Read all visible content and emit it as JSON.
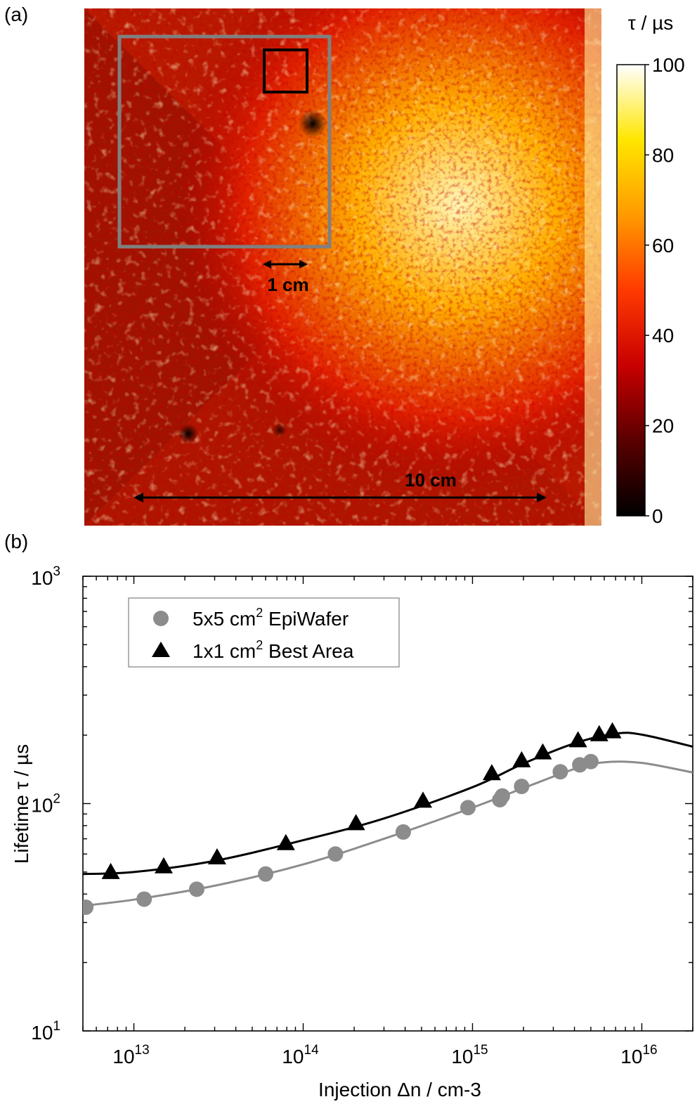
{
  "panel_a": {
    "label": "(a)",
    "colorbar_title": "τ / µs",
    "colorbar_ticks": [
      "100",
      "80",
      "60",
      "40",
      "20",
      "0"
    ],
    "colorbar_range": [
      0,
      100
    ],
    "colormap": [
      "#000000",
      "#5a0000",
      "#c80000",
      "#ff3a00",
      "#ff9a00",
      "#ffe600",
      "#ffffff"
    ],
    "scale_small": "1 cm",
    "scale_large": "10 cm",
    "gray_box_color": "#808080",
    "black_box_color": "#000000"
  },
  "chart_data": {
    "type": "scatter",
    "label": "(b)",
    "xlabel": "Injection Δn / cm-3",
    "ylabel": "Lifetime τ / µs",
    "xscale": "log",
    "yscale": "log",
    "xlim": [
      5000000000000.0,
      2e+16
    ],
    "ylim": [
      10,
      1000
    ],
    "x_ticks": [
      {
        "value": 10000000000000.0,
        "base": "10",
        "exp": "13"
      },
      {
        "value": 100000000000000.0,
        "base": "10",
        "exp": "14"
      },
      {
        "value": 1000000000000000.0,
        "base": "10",
        "exp": "15"
      },
      {
        "value": 1e+16,
        "base": "10",
        "exp": "16"
      }
    ],
    "y_ticks": [
      {
        "value": 10,
        "base": "10",
        "exp": "1"
      },
      {
        "value": 100,
        "base": "10",
        "exp": "2"
      },
      {
        "value": 1000,
        "base": "10",
        "exp": "3"
      }
    ],
    "legend_position": "top-left",
    "series": [
      {
        "name": "5x5 cm2 EpiWafer",
        "legend_main": "5x5 cm",
        "legend_sup": "2",
        "legend_tail": " EpiWafer",
        "marker": "circle",
        "color": "#8c8c8c",
        "points": [
          [
            5200000000000.0,
            35
          ],
          [
            11500000000000.0,
            38
          ],
          [
            23500000000000.0,
            42
          ],
          [
            60000000000000.0,
            49
          ],
          [
            155000000000000.0,
            60
          ],
          [
            390000000000000.0,
            75
          ],
          [
            940000000000000.0,
            96
          ],
          [
            1450000000000000.0,
            104
          ],
          [
            1500000000000000.0,
            108
          ],
          [
            1950000000000000.0,
            119
          ],
          [
            3300000000000000.0,
            138
          ],
          [
            4300000000000000.0,
            148
          ],
          [
            5000000000000000.0,
            153
          ]
        ],
        "fit": [
          [
            5000000000000.0,
            35.5
          ],
          [
            10000000000000.0,
            37.8
          ],
          [
            30000000000000.0,
            43.5
          ],
          [
            100000000000000.0,
            54
          ],
          [
            300000000000000.0,
            70
          ],
          [
            1000000000000000.0,
            96
          ],
          [
            2000000000000000.0,
            117
          ],
          [
            4000000000000000.0,
            142
          ],
          [
            6000000000000000.0,
            152
          ],
          [
            1e+16,
            151
          ],
          [
            2e+16,
            137
          ]
        ]
      },
      {
        "name": "1x1 cm2 Best Area",
        "legend_main": "1x1 cm",
        "legend_sup": "2",
        "legend_tail": " Best Area",
        "marker": "triangle",
        "color": "#000000",
        "points": [
          [
            7300000000000.0,
            50
          ],
          [
            15000000000000.0,
            53
          ],
          [
            31000000000000.0,
            58
          ],
          [
            79000000000000.0,
            67
          ],
          [
            205000000000000.0,
            82
          ],
          [
            510000000000000.0,
            103
          ],
          [
            1300000000000000.0,
            136
          ],
          [
            1950000000000000.0,
            155
          ],
          [
            2600000000000000.0,
            168
          ],
          [
            4200000000000000.0,
            190
          ],
          [
            5600000000000000.0,
            202
          ],
          [
            6700000000000000.0,
            208
          ]
        ],
        "fit": [
          [
            5000000000000.0,
            49
          ],
          [
            10000000000000.0,
            50
          ],
          [
            30000000000000.0,
            56
          ],
          [
            100000000000000.0,
            69
          ],
          [
            300000000000000.0,
            86
          ],
          [
            1000000000000000.0,
            118
          ],
          [
            2000000000000000.0,
            150
          ],
          [
            4000000000000000.0,
            184
          ],
          [
            7000000000000000.0,
            203
          ],
          [
            1e+16,
            201
          ],
          [
            2e+16,
            178
          ]
        ]
      }
    ]
  }
}
